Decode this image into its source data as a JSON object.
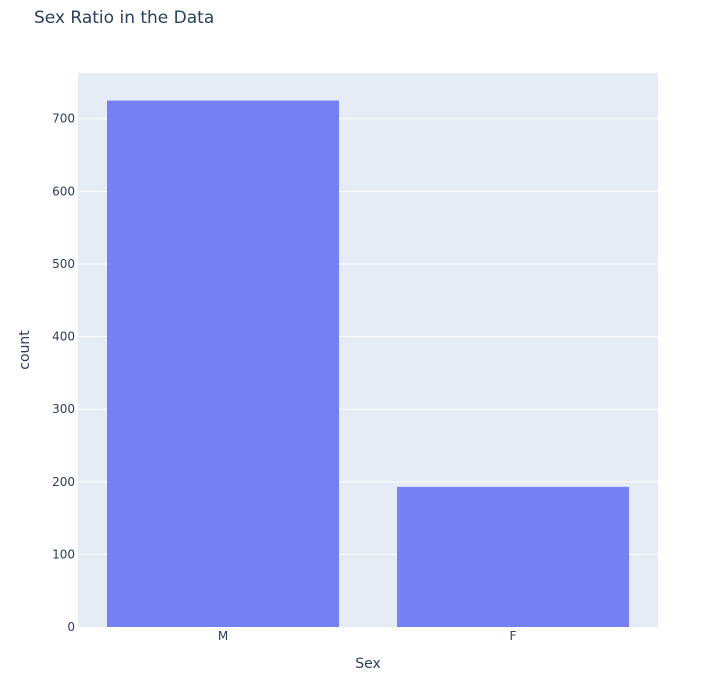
{
  "chart_data": {
    "type": "bar",
    "title": "Sex Ratio in the Data",
    "xlabel": "Sex",
    "ylabel": "count",
    "categories": [
      "M",
      "F"
    ],
    "values": [
      725,
      193
    ],
    "ylim": [
      0,
      763
    ],
    "yticks": [
      0,
      100,
      200,
      300,
      400,
      500,
      600,
      700
    ],
    "grid": true,
    "legend": "none",
    "colors": {
      "bar": "#7580f3",
      "plot_background": "#e5ecf6",
      "grid": "#ffffff",
      "text": "#2a3f5f"
    }
  }
}
